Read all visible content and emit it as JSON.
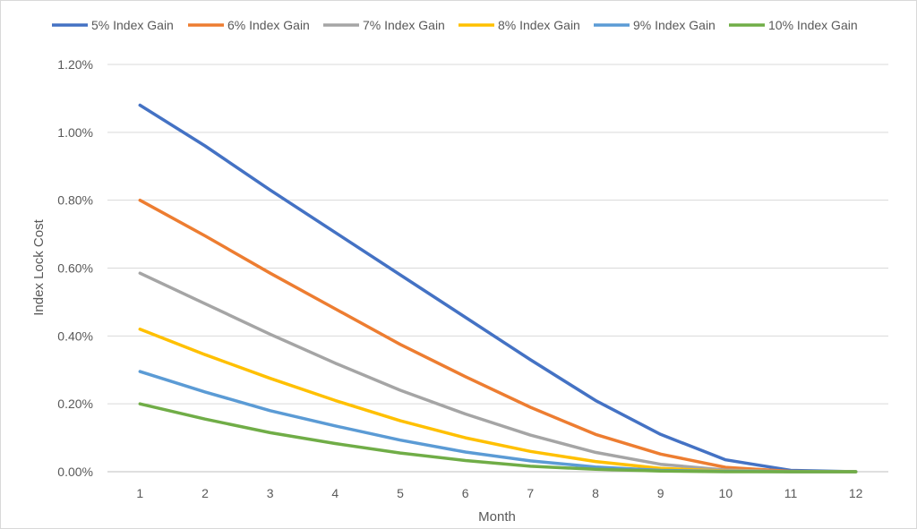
{
  "chart_data": {
    "type": "line",
    "title": "",
    "xlabel": "Month",
    "ylabel": "Index Lock Cost",
    "categories": [
      1,
      2,
      3,
      4,
      5,
      6,
      7,
      8,
      9,
      10,
      11,
      12
    ],
    "ylim": [
      0,
      1.2
    ],
    "y_ticks": [
      "0.00%",
      "0.20%",
      "0.40%",
      "0.60%",
      "0.80%",
      "1.00%",
      "1.20%"
    ],
    "y_unit": "%",
    "grid": "horizontal",
    "legend": "top",
    "series": [
      {
        "name": "5% Index Gain",
        "color": "#4472C4",
        "values": [
          1.08,
          0.96,
          0.83,
          0.705,
          0.58,
          0.455,
          0.33,
          0.21,
          0.11,
          0.035,
          0.004,
          0.0
        ]
      },
      {
        "name": "6% Index Gain",
        "color": "#ED7D31",
        "values": [
          0.8,
          0.695,
          0.585,
          0.48,
          0.375,
          0.28,
          0.19,
          0.11,
          0.052,
          0.013,
          0.001,
          0.0
        ]
      },
      {
        "name": "7% Index Gain",
        "color": "#A5A5A5",
        "values": [
          0.585,
          0.495,
          0.405,
          0.32,
          0.24,
          0.17,
          0.108,
          0.057,
          0.022,
          0.005,
          0.0,
          0.0
        ]
      },
      {
        "name": "8% Index Gain",
        "color": "#FFC000",
        "values": [
          0.42,
          0.345,
          0.275,
          0.21,
          0.15,
          0.1,
          0.06,
          0.03,
          0.01,
          0.002,
          0.0,
          0.0
        ]
      },
      {
        "name": "9% Index Gain",
        "color": "#5B9BD5",
        "values": [
          0.295,
          0.235,
          0.18,
          0.135,
          0.093,
          0.058,
          0.032,
          0.014,
          0.004,
          0.001,
          0.0,
          0.0
        ]
      },
      {
        "name": "10% Index Gain",
        "color": "#70AD47",
        "values": [
          0.2,
          0.155,
          0.115,
          0.083,
          0.055,
          0.033,
          0.016,
          0.007,
          0.002,
          0.0,
          0.0,
          0.0
        ]
      }
    ]
  }
}
